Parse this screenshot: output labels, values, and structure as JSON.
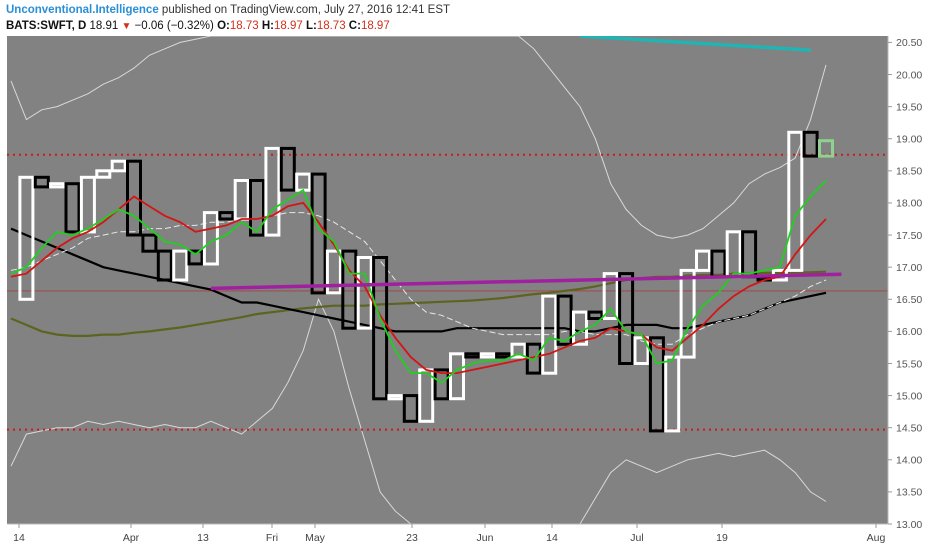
{
  "header": {
    "author": "Unconventional.Intelligence",
    "published": "published on TradingView.com, July 27, 2016 12:41 EST",
    "symbol": "BATS:SWFT, D",
    "last": "18.91",
    "change": "−0.06 (−0.32%)",
    "open_label": "O:",
    "open": "18.73",
    "high_label": "H:",
    "high": "18.97",
    "low_label": "L:",
    "low": "18.73",
    "close_label": "C:",
    "close": "18.97"
  },
  "colors": {
    "plot_bg": "#828282",
    "axis_bg": "#ffffff",
    "up_candle": "#ffffff",
    "down_candle": "#000000",
    "last_candle": "#8fd18f",
    "ema_fast": "#1fd01f",
    "ema_mid": "#d41515",
    "ma_dashed": "#e8e8e8",
    "sma_black": "#000000",
    "sma_olive": "#5d6420",
    "purple_line": "#a020a0",
    "teal_line": "#1fb5b5",
    "bollinger": "#d9d9d9",
    "levels": "#cc1a1a"
  },
  "chart_data": {
    "type": "candlestick",
    "title": "",
    "y_axis": {
      "side": "right",
      "range": [
        13.0,
        20.6
      ],
      "ticks": [
        "20.50",
        "20.00",
        "19.50",
        "19.00",
        "18.50",
        "18.00",
        "17.50",
        "17.00",
        "16.50",
        "16.00",
        "15.50",
        "15.00",
        "14.50",
        "14.00",
        "13.50",
        "13.00"
      ]
    },
    "x_axis": {
      "ticks": [
        "14",
        "Apr",
        "13",
        "Fri",
        "May",
        "23",
        "Jun",
        "14",
        "Jul",
        "19",
        "Aug"
      ]
    },
    "grid": false,
    "horizontal_levels": [
      {
        "value": 18.75,
        "style": "dotted"
      },
      {
        "value": 14.47,
        "style": "dotted"
      },
      {
        "value": 16.63,
        "style": "thin"
      }
    ],
    "closes": [
      16.5,
      18.4,
      18.25,
      18.3,
      17.55,
      18.4,
      18.5,
      18.65,
      17.5,
      17.25,
      16.8,
      17.25,
      17.05,
      17.85,
      17.75,
      18.35,
      17.5,
      18.85,
      18.2,
      18.45,
      16.6,
      17.25,
      16.05,
      17.15,
      14.95,
      15.0,
      14.6,
      15.4,
      14.95,
      15.65,
      15.6,
      15.65,
      15.6,
      15.8,
      15.35,
      16.55,
      15.8,
      16.3,
      16.2,
      16.9,
      15.5,
      15.9,
      14.45,
      15.6,
      16.95,
      17.25,
      16.85,
      17.55,
      16.85,
      16.8,
      16.95,
      19.1,
      18.73,
      18.97
    ],
    "series": [
      {
        "values": [
          16.9,
          17.0,
          17.3,
          17.55,
          17.5,
          17.6,
          17.75,
          17.9,
          17.8,
          17.6,
          17.4,
          17.35,
          17.2,
          17.4,
          17.5,
          17.7,
          17.55,
          17.9,
          18.05,
          18.2,
          17.6,
          17.4,
          16.9,
          16.9,
          16.2,
          15.7,
          15.35,
          15.35,
          15.2,
          15.4,
          15.5,
          15.55,
          15.55,
          15.65,
          15.55,
          15.9,
          15.85,
          16.0,
          16.1,
          16.35,
          16.0,
          15.95,
          15.5,
          15.55,
          16.05,
          16.4,
          16.6,
          16.9,
          16.9,
          16.95,
          17.0,
          17.8,
          18.1,
          18.35
        ]
      },
      {
        "values": [
          16.85,
          16.9,
          17.1,
          17.3,
          17.45,
          17.55,
          17.7,
          17.9,
          18.1,
          17.95,
          17.8,
          17.7,
          17.55,
          17.6,
          17.65,
          17.75,
          17.75,
          17.8,
          17.95,
          18.0,
          17.7,
          17.35,
          16.95,
          16.7,
          16.25,
          15.9,
          15.6,
          15.4,
          15.35,
          15.35,
          15.4,
          15.45,
          15.5,
          15.55,
          15.6,
          15.65,
          15.75,
          15.85,
          15.9,
          16.05,
          16.0,
          15.95,
          15.75,
          15.7,
          15.9,
          16.1,
          16.35,
          16.55,
          16.7,
          16.8,
          16.85,
          17.2,
          17.5,
          17.75
        ]
      },
      {
        "values": [
          16.95,
          17.0,
          17.1,
          17.2,
          17.3,
          17.45,
          17.5,
          17.55,
          17.55,
          17.6,
          17.6,
          17.65,
          17.65,
          17.7,
          17.7,
          17.75,
          17.75,
          17.8,
          17.85,
          17.85,
          17.8,
          17.7,
          17.55,
          17.4,
          17.1,
          16.8,
          16.5,
          16.3,
          16.25,
          16.15,
          16.05,
          16.0,
          15.95,
          15.95,
          15.95,
          15.95,
          16.0,
          16.0,
          15.95,
          15.95,
          15.95,
          15.85,
          15.8,
          15.8,
          15.95,
          16.05,
          16.15,
          16.2,
          16.25,
          16.35,
          16.45,
          16.55,
          16.7,
          16.8
        ]
      },
      {
        "values": [
          17.6,
          17.5,
          17.4,
          17.3,
          17.2,
          17.1,
          17.0,
          16.95,
          16.9,
          16.85,
          16.8,
          16.75,
          16.7,
          16.65,
          16.55,
          16.45,
          16.45,
          16.4,
          16.35,
          16.3,
          16.25,
          16.2,
          16.15,
          16.1,
          16.05,
          16.0,
          16.0,
          16.0,
          16.0,
          16.05,
          16.05,
          16.05,
          16.05,
          16.05,
          16.05,
          16.05,
          16.05,
          16.0,
          16.0,
          16.05,
          16.1,
          16.1,
          16.1,
          16.05,
          16.05,
          16.1,
          16.15,
          16.2,
          16.25,
          16.35,
          16.45,
          16.5,
          16.55,
          16.6
        ]
      },
      {
        "values": [
          16.2,
          16.1,
          16.0,
          15.95,
          15.93,
          15.93,
          15.95,
          15.95,
          15.98,
          16.0,
          16.03,
          16.06,
          16.1,
          16.14,
          16.18,
          16.22,
          16.27,
          16.3,
          16.33,
          16.36,
          16.38,
          16.4,
          16.4,
          16.4,
          16.42,
          16.43,
          16.44,
          16.45,
          16.46,
          16.47,
          16.48,
          16.5,
          16.52,
          16.55,
          16.58,
          16.6,
          16.63,
          16.66,
          16.7,
          16.75,
          16.8,
          16.83,
          16.85,
          16.85,
          16.87,
          16.88,
          16.88,
          16.9,
          16.9,
          16.91,
          16.91,
          16.92,
          16.92,
          16.93
        ]
      },
      {
        "x_range": [
          13,
          54
        ],
        "values": [
          16.67,
          16.89
        ]
      },
      {
        "x_range": [
          37,
          52
        ],
        "values": [
          20.6,
          20.38
        ]
      },
      {
        "values": [
          19.9,
          19.3,
          19.45,
          19.5,
          19.6,
          19.7,
          19.85,
          19.95,
          20.1,
          20.3,
          20.4,
          20.5,
          20.55,
          20.6,
          20.6,
          20.6,
          20.6,
          20.6,
          20.6,
          20.6,
          20.6,
          20.6,
          20.6,
          20.6,
          20.6,
          20.6,
          20.6,
          20.6,
          20.6,
          20.6,
          20.6,
          20.6,
          20.6,
          20.6,
          20.4,
          20.1,
          19.8,
          19.5,
          19.0,
          18.3,
          17.9,
          17.65,
          17.5,
          17.45,
          17.5,
          17.6,
          17.8,
          18.0,
          18.3,
          18.45,
          18.55,
          18.7,
          19.3,
          20.15
        ]
      },
      {
        "values": [
          13.9,
          14.4,
          14.45,
          14.5,
          14.5,
          14.6,
          14.55,
          14.6,
          14.55,
          14.5,
          14.55,
          14.5,
          14.5,
          14.6,
          14.5,
          14.4,
          14.6,
          14.8,
          15.2,
          15.7,
          16.5,
          16.0,
          15.1,
          14.3,
          13.5,
          13.2,
          13.0,
          13.0,
          13.0,
          13.0,
          13.0,
          13.0,
          13.0,
          13.0,
          13.0,
          13.0,
          13.0,
          13.0,
          13.4,
          13.8,
          14.0,
          13.9,
          13.8,
          13.9,
          14.0,
          14.05,
          14.1,
          14.05,
          14.1,
          14.15,
          14.0,
          13.8,
          13.5,
          13.35
        ]
      }
    ]
  }
}
